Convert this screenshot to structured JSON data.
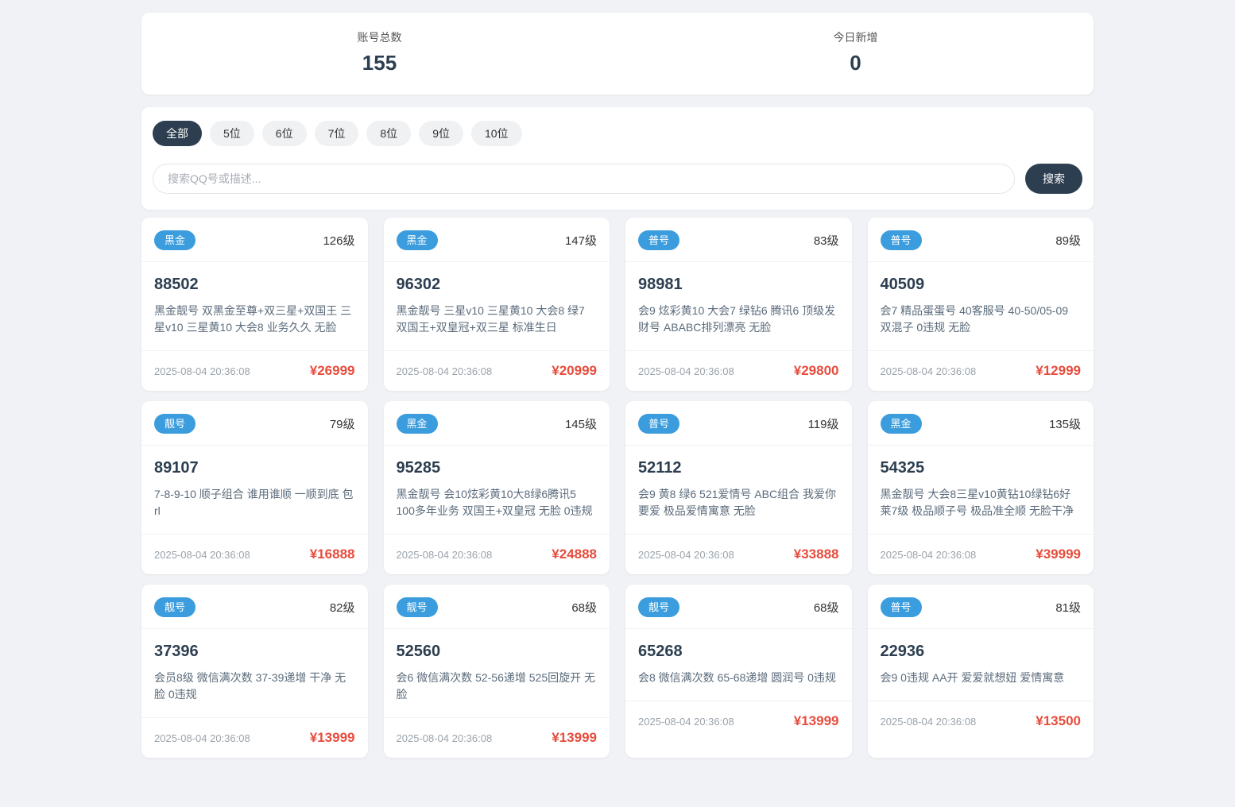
{
  "stats": {
    "total_label": "账号总数",
    "total_value": "155",
    "today_label": "今日新增",
    "today_value": "0"
  },
  "filters": {
    "tabs": [
      {
        "label": "全部",
        "active": true
      },
      {
        "label": "5位",
        "active": false
      },
      {
        "label": "6位",
        "active": false
      },
      {
        "label": "7位",
        "active": false
      },
      {
        "label": "8位",
        "active": false
      },
      {
        "label": "9位",
        "active": false
      },
      {
        "label": "10位",
        "active": false
      }
    ]
  },
  "search": {
    "placeholder": "搜索QQ号或描述...",
    "button_label": "搜索"
  },
  "colors": {
    "badge_blue": "#3b9ddd",
    "accent_dark": "#2c3e50",
    "price_red": "#e74c3c",
    "page_background": "#f0f2f5"
  },
  "cards": [
    {
      "badge": "黑金",
      "level": "126级",
      "number": "88502",
      "description": "黑金靓号 双黑金至尊+双三星+双国王 三星v10 三星黄10 大会8 业务久久 无脸",
      "date": "2025-08-04 20:36:08",
      "price": "¥26999"
    },
    {
      "badge": "黑金",
      "level": "147级",
      "number": "96302",
      "description": "黑金靓号 三星v10 三星黄10 大会8 绿7 双国王+双皇冠+双三星 标准生日",
      "date": "2025-08-04 20:36:08",
      "price": "¥20999"
    },
    {
      "badge": "普号",
      "level": "83级",
      "number": "98981",
      "description": "会9 炫彩黄10 大会7 绿钻6 腾讯6 顶级发财号 ABABC排列漂亮 无脸",
      "date": "2025-08-04 20:36:08",
      "price": "¥29800"
    },
    {
      "badge": "普号",
      "level": "89级",
      "number": "40509",
      "description": "会7 精品蛋蛋号 40客服号 40-50/05-09 双混子 0违规 无脸",
      "date": "2025-08-04 20:36:08",
      "price": "¥12999"
    },
    {
      "badge": "靓号",
      "level": "79级",
      "number": "89107",
      "description": "7-8-9-10 顺子组合 谁用谁顺 一顺到底 包rl",
      "date": "2025-08-04 20:36:08",
      "price": "¥16888"
    },
    {
      "badge": "黑金",
      "level": "145级",
      "number": "95285",
      "description": "黑金靓号 会10炫彩黄10大8绿6腾讯5 100多年业务 双国王+双皇冠 无脸 0违规",
      "date": "2025-08-04 20:36:08",
      "price": "¥24888"
    },
    {
      "badge": "普号",
      "level": "119级",
      "number": "52112",
      "description": "会9 黄8 绿6 521爱情号 ABC组合 我爱你要爱 极品爱情寓意 无脸",
      "date": "2025-08-04 20:36:08",
      "price": "¥33888"
    },
    {
      "badge": "黑金",
      "level": "135级",
      "number": "54325",
      "description": "黑金靓号 大会8三星v10黄钻10绿钻6好莱7级 极品顺子号 极品准全顺 无脸干净",
      "date": "2025-08-04 20:36:08",
      "price": "¥39999"
    },
    {
      "badge": "靓号",
      "level": "82级",
      "number": "37396",
      "description": "会员8级 微信满次数 37-39递增 干净 无脸 0违规",
      "date": "2025-08-04 20:36:08",
      "price": "¥13999"
    },
    {
      "badge": "靓号",
      "level": "68级",
      "number": "52560",
      "description": "会6 微信满次数 52-56递增 525回旋开 无脸",
      "date": "2025-08-04 20:36:08",
      "price": "¥13999"
    },
    {
      "badge": "靓号",
      "level": "68级",
      "number": "65268",
      "description": "会8 微信满次数 65-68递增 圆润号 0违规",
      "date": "2025-08-04 20:36:08",
      "price": "¥13999"
    },
    {
      "badge": "普号",
      "level": "81级",
      "number": "22936",
      "description": "会9 0违规 AA开 爱爱就想妞 爱情寓意",
      "date": "2025-08-04 20:36:08",
      "price": "¥13500"
    }
  ]
}
